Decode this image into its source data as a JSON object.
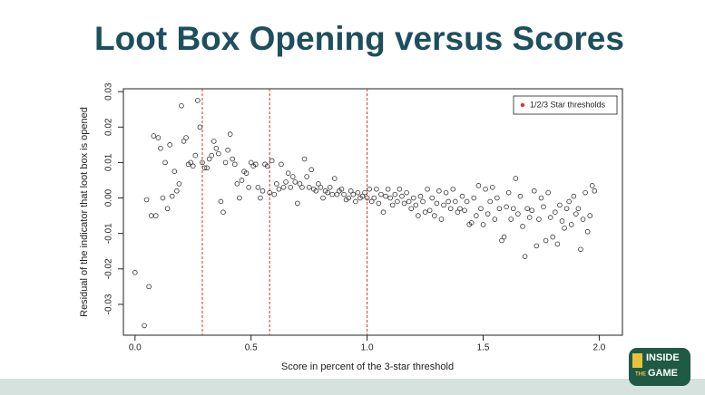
{
  "chart_data": {
    "type": "scatter",
    "title": "Loot Box Opening versus Scores",
    "xlabel": "Score in percent of the 3-star threshold",
    "ylabel": "Residual of the indicator that loot box is opened",
    "xlim": [
      -0.05,
      2.1
    ],
    "ylim": [
      -0.0387,
      0.0308
    ],
    "xticks": [
      {
        "value": 0,
        "label": "0.0"
      },
      0.5,
      {
        "value": 1,
        "label": "1.0"
      },
      1.5,
      {
        "value": 2,
        "label": "2.0"
      }
    ],
    "yticks": [
      -0.03,
      -0.02,
      -0.01,
      {
        "value": 0,
        "label": "0.00"
      },
      0.01,
      0.02,
      0.03
    ],
    "color": "#333333",
    "legend": "top-right",
    "thresholds": {
      "name": "1/2/3 Star thresholds",
      "color": "#e03030",
      "values": [
        0.29,
        0.58,
        1.0
      ]
    },
    "x": [
      0.0,
      0.04,
      0.05,
      0.06,
      0.07,
      0.08,
      0.09,
      0.1,
      0.11,
      0.12,
      0.13,
      0.14,
      0.15,
      0.16,
      0.17,
      0.18,
      0.19,
      0.2,
      0.21,
      0.22,
      0.23,
      0.24,
      0.25,
      0.26,
      0.27,
      0.28,
      0.29,
      0.3,
      0.31,
      0.32,
      0.33,
      0.34,
      0.35,
      0.36,
      0.37,
      0.38,
      0.39,
      0.4,
      0.41,
      0.42,
      0.43,
      0.44,
      0.45,
      0.46,
      0.47,
      0.48,
      0.49,
      0.5,
      0.51,
      0.52,
      0.53,
      0.54,
      0.55,
      0.56,
      0.57,
      0.58,
      0.59,
      0.6,
      0.61,
      0.62,
      0.63,
      0.64,
      0.65,
      0.66,
      0.67,
      0.68,
      0.69,
      0.7,
      0.71,
      0.72,
      0.73,
      0.74,
      0.75,
      0.76,
      0.77,
      0.78,
      0.79,
      0.8,
      0.81,
      0.82,
      0.83,
      0.84,
      0.85,
      0.86,
      0.87,
      0.88,
      0.89,
      0.9,
      0.91,
      0.92,
      0.93,
      0.94,
      0.95,
      0.96,
      0.97,
      0.98,
      0.99,
      1.0,
      1.01,
      1.02,
      1.03,
      1.04,
      1.05,
      1.06,
      1.07,
      1.08,
      1.09,
      1.1,
      1.11,
      1.12,
      1.13,
      1.14,
      1.15,
      1.16,
      1.17,
      1.18,
      1.19,
      1.2,
      1.21,
      1.22,
      1.23,
      1.24,
      1.25,
      1.26,
      1.27,
      1.28,
      1.29,
      1.3,
      1.31,
      1.32,
      1.33,
      1.34,
      1.35,
      1.36,
      1.37,
      1.38,
      1.39,
      1.4,
      1.41,
      1.42,
      1.43,
      1.44,
      1.45,
      1.46,
      1.47,
      1.48,
      1.49,
      1.5,
      1.51,
      1.52,
      1.53,
      1.54,
      1.55,
      1.56,
      1.57,
      1.58,
      1.59,
      1.6,
      1.61,
      1.62,
      1.63,
      1.64,
      1.65,
      1.66,
      1.67,
      1.68,
      1.69,
      1.7,
      1.71,
      1.72,
      1.73,
      1.74,
      1.75,
      1.76,
      1.77,
      1.78,
      1.79,
      1.8,
      1.81,
      1.82,
      1.83,
      1.84,
      1.85,
      1.86,
      1.87,
      1.88,
      1.89,
      1.9,
      1.91,
      1.92,
      1.93,
      1.94,
      1.95,
      1.96,
      1.97,
      1.98
    ],
    "values": [
      -0.021,
      -0.036,
      -0.0005,
      -0.025,
      -0.005,
      0.0175,
      -0.005,
      0.017,
      0.014,
      0.0,
      0.01,
      -0.003,
      0.015,
      0.0005,
      0.0075,
      0.002,
      0.004,
      0.026,
      0.016,
      0.017,
      0.0095,
      0.01,
      0.009,
      0.012,
      0.0275,
      0.02,
      0.01,
      0.0085,
      0.0085,
      0.011,
      0.012,
      0.016,
      0.014,
      0.0125,
      -0.001,
      -0.004,
      0.01,
      0.0135,
      0.018,
      0.011,
      0.0095,
      0.004,
      0.0,
      0.005,
      0.0075,
      0.007,
      0.003,
      0.01,
      0.009,
      0.0095,
      0.003,
      0.0,
      0.002,
      0.0095,
      0.009,
      0.0015,
      0.0105,
      0.001,
      0.004,
      0.0025,
      0.0095,
      0.003,
      0.0045,
      0.007,
      0.003,
      0.006,
      0.0045,
      -0.0015,
      0.004,
      0.003,
      0.011,
      0.006,
      0.003,
      0.008,
      0.0025,
      0.002,
      0.004,
      0.003,
      0.0,
      0.002,
      0.0015,
      0.003,
      0.001,
      0.0055,
      0.001,
      0.002,
      0.0025,
      0.001,
      -0.0005,
      0.0,
      0.002,
      0.001,
      -0.001,
      0.0015,
      0.0,
      0.0005,
      0.0015,
      0.0,
      0.0025,
      -0.001,
      0.0,
      0.0025,
      -0.0015,
      0.001,
      -0.004,
      0.0005,
      0.0025,
      0.0,
      -0.002,
      0.001,
      -0.001,
      0.0025,
      0.0005,
      -0.0015,
      0.0015,
      -0.001,
      -0.003,
      0.0,
      -0.002,
      -0.005,
      0.0005,
      -0.001,
      -0.004,
      0.0025,
      -0.0035,
      0.0,
      -0.005,
      -0.0015,
      0.002,
      -0.006,
      -0.002,
      0.0015,
      -0.001,
      -0.003,
      0.0025,
      -0.001,
      -0.004,
      -0.003,
      0.0005,
      -0.0035,
      -0.001,
      -0.0075,
      -0.007,
      0.0,
      -0.005,
      0.0035,
      -0.003,
      -0.0075,
      0.0025,
      -0.0045,
      -0.001,
      0.003,
      -0.006,
      0.0,
      -0.003,
      -0.012,
      -0.011,
      -0.0025,
      0.0015,
      -0.006,
      -0.003,
      0.0055,
      -0.0045,
      0.0005,
      -0.008,
      -0.0165,
      -0.003,
      -0.0055,
      -0.0035,
      0.002,
      -0.0135,
      -0.006,
      0.0,
      -0.0025,
      -0.012,
      0.0015,
      -0.0055,
      -0.011,
      -0.004,
      -0.013,
      -0.002,
      -0.0065,
      -0.0085,
      -0.003,
      -0.001,
      -0.0075,
      0.0005,
      -0.0045,
      -0.003,
      -0.0145,
      -0.006,
      0.0015,
      -0.0095,
      -0.005,
      0.0035,
      0.002
    ]
  },
  "logo": {
    "line1": "INSIDE",
    "line2": "THE",
    "line3": "GAME"
  }
}
